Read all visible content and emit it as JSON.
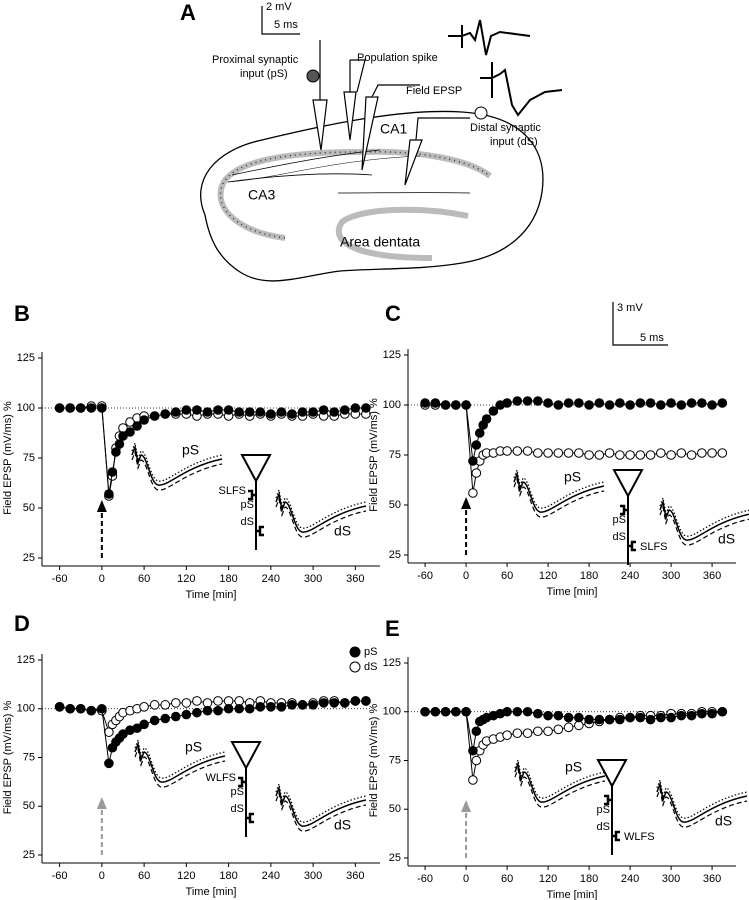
{
  "figure_a": {
    "panel": "A",
    "scale_bar": {
      "y": "2 mV",
      "x": "5 ms"
    },
    "labels": {
      "proximal": [
        "Proximal synaptic",
        "input (pS)"
      ],
      "population_spike": "Population spike",
      "field_epsp": "Field EPSP",
      "ca1": "CA1",
      "distal": [
        "Distal synaptic",
        "input (dS)"
      ],
      "ca3": "CA3",
      "dentata": "Area dentata"
    }
  },
  "scale_bar_c": {
    "y": "3 mV",
    "x": "5 ms"
  },
  "chart_data": [
    {
      "type": "line",
      "panel": "B",
      "xlabel": "Time [min]",
      "ylabel": "Field EPSP (mV/ms) %",
      "x": [
        -60,
        -45,
        -30,
        -15,
        0,
        10,
        15,
        20,
        25,
        30,
        40,
        50,
        60,
        75,
        90,
        105,
        120,
        135,
        150,
        165,
        180,
        195,
        210,
        225,
        240,
        255,
        270,
        285,
        300,
        315,
        330,
        345,
        360,
        375
      ],
      "xlim": [
        -85,
        395
      ],
      "ylim": [
        25,
        125
      ],
      "xticks": [
        -60,
        0,
        60,
        120,
        180,
        240,
        300,
        360
      ],
      "yticks": [
        25,
        50,
        75,
        100,
        125
      ],
      "reference_line": 100,
      "stimulus_time": 0,
      "arrow_color": "#000000",
      "legend": false,
      "stimulus": "SLFS",
      "series": [
        {
          "name": "pS",
          "color": "#000000",
          "fill": "#000000",
          "values": [
            100,
            100,
            100,
            100,
            100,
            57,
            68,
            78,
            82,
            86,
            88,
            91,
            94,
            96,
            97,
            98,
            99,
            99,
            98,
            99,
            99,
            98,
            98,
            98,
            97,
            98,
            97,
            98,
            98,
            99,
            98,
            99,
            100,
            100
          ]
        },
        {
          "name": "dS",
          "color": "#000000",
          "fill": "#ffffff",
          "values": [
            100,
            100,
            100,
            101,
            101,
            56,
            66,
            80,
            86,
            90,
            93,
            95,
            96,
            96,
            97,
            97,
            97,
            96,
            97,
            97,
            96,
            97,
            96,
            97,
            96,
            97,
            96,
            96,
            97,
            96,
            96,
            97,
            97,
            97
          ]
        }
      ]
    },
    {
      "type": "line",
      "panel": "C",
      "xlabel": "Time [min]",
      "ylabel": "Field EPSP (mV/ms) %",
      "x": [
        -60,
        -45,
        -30,
        -15,
        0,
        10,
        15,
        20,
        25,
        30,
        40,
        50,
        60,
        75,
        90,
        105,
        120,
        135,
        150,
        165,
        180,
        195,
        210,
        225,
        240,
        255,
        270,
        285,
        300,
        315,
        330,
        345,
        360,
        375
      ],
      "xlim": [
        -85,
        395
      ],
      "ylim": [
        25,
        125
      ],
      "xticks": [
        -60,
        0,
        60,
        120,
        180,
        240,
        300,
        360
      ],
      "yticks": [
        25,
        50,
        75,
        100,
        125
      ],
      "reference_line": 100,
      "stimulus_time": 0,
      "arrow_color": "#000000",
      "legend": false,
      "stimulus": "SLFS",
      "series": [
        {
          "name": "pS",
          "color": "#000000",
          "fill": "#000000",
          "values": [
            101,
            101,
            100,
            100,
            100,
            72,
            80,
            86,
            90,
            93,
            97,
            100,
            101,
            102,
            102,
            102,
            101,
            100,
            101,
            101,
            100,
            101,
            100,
            101,
            100,
            101,
            101,
            100,
            101,
            100,
            101,
            101,
            100,
            101
          ]
        },
        {
          "name": "dS",
          "color": "#000000",
          "fill": "#ffffff",
          "values": [
            100,
            100,
            100,
            100,
            100,
            56,
            66,
            72,
            75,
            76,
            76,
            77,
            77,
            77,
            77,
            76,
            76,
            76,
            76,
            76,
            75,
            75,
            76,
            75,
            75,
            75,
            75,
            76,
            75,
            76,
            75,
            76,
            76,
            76
          ]
        }
      ]
    },
    {
      "type": "line",
      "panel": "D",
      "xlabel": "Time [min]",
      "ylabel": "Field EPSP (mV/ms) %",
      "x": [
        -60,
        -45,
        -30,
        -15,
        0,
        10,
        15,
        20,
        25,
        30,
        40,
        50,
        60,
        75,
        90,
        105,
        120,
        135,
        150,
        165,
        180,
        195,
        210,
        225,
        240,
        255,
        270,
        285,
        300,
        315,
        330,
        345,
        360,
        375
      ],
      "xlim": [
        -85,
        395
      ],
      "ylim": [
        25,
        125
      ],
      "xticks": [
        -60,
        0,
        60,
        120,
        180,
        240,
        300,
        360
      ],
      "yticks": [
        25,
        50,
        75,
        100,
        125
      ],
      "reference_line": 100,
      "stimulus_time": 0,
      "arrow_color": "#999999",
      "legend": true,
      "stimulus": "WLFS",
      "series": [
        {
          "name": "pS",
          "color": "#000000",
          "fill": "#000000",
          "values": [
            101,
            100,
            100,
            99,
            100,
            72,
            80,
            83,
            85,
            87,
            89,
            90,
            92,
            94,
            95,
            96,
            97,
            98,
            99,
            99,
            100,
            100,
            100,
            101,
            101,
            101,
            102,
            102,
            102,
            103,
            103,
            103,
            104,
            104
          ]
        },
        {
          "name": "dS",
          "color": "#000000",
          "fill": "#ffffff",
          "values": [
            101,
            100,
            100,
            99,
            99,
            88,
            92,
            94,
            96,
            98,
            99,
            100,
            101,
            102,
            102,
            103,
            103,
            104,
            103,
            104,
            104,
            104,
            103,
            104,
            103,
            103,
            103,
            102,
            103,
            104,
            104,
            103,
            104,
            104
          ]
        }
      ]
    },
    {
      "type": "line",
      "panel": "E",
      "xlabel": "Time [min]",
      "ylabel": "Field EPSP (mV/ms) %",
      "x": [
        -60,
        -45,
        -30,
        -15,
        0,
        10,
        15,
        20,
        25,
        30,
        40,
        50,
        60,
        75,
        90,
        105,
        120,
        135,
        150,
        165,
        180,
        195,
        210,
        225,
        240,
        255,
        270,
        285,
        300,
        315,
        330,
        345,
        360,
        375
      ],
      "xlim": [
        -85,
        395
      ],
      "ylim": [
        25,
        125
      ],
      "xticks": [
        -60,
        0,
        60,
        120,
        180,
        240,
        300,
        360
      ],
      "yticks": [
        25,
        50,
        75,
        100,
        125
      ],
      "reference_line": 100,
      "stimulus_time": 0,
      "arrow_color": "#999999",
      "legend": false,
      "stimulus": "WLFS",
      "series": [
        {
          "name": "pS",
          "color": "#000000",
          "fill": "#000000",
          "values": [
            100,
            100,
            100,
            100,
            100,
            80,
            90,
            95,
            96,
            97,
            98,
            99,
            100,
            100,
            100,
            99,
            98,
            98,
            97,
            97,
            96,
            96,
            96,
            96,
            97,
            97,
            96,
            97,
            97,
            98,
            98,
            99,
            99,
            100
          ]
        },
        {
          "name": "dS",
          "color": "#000000",
          "fill": "#ffffff",
          "values": [
            100,
            100,
            100,
            100,
            100,
            65,
            75,
            80,
            83,
            85,
            86,
            87,
            88,
            89,
            89,
            90,
            90,
            91,
            92,
            93,
            94,
            95,
            96,
            97,
            97,
            98,
            98,
            98,
            99,
            99,
            99,
            100,
            100,
            100
          ]
        }
      ]
    }
  ]
}
